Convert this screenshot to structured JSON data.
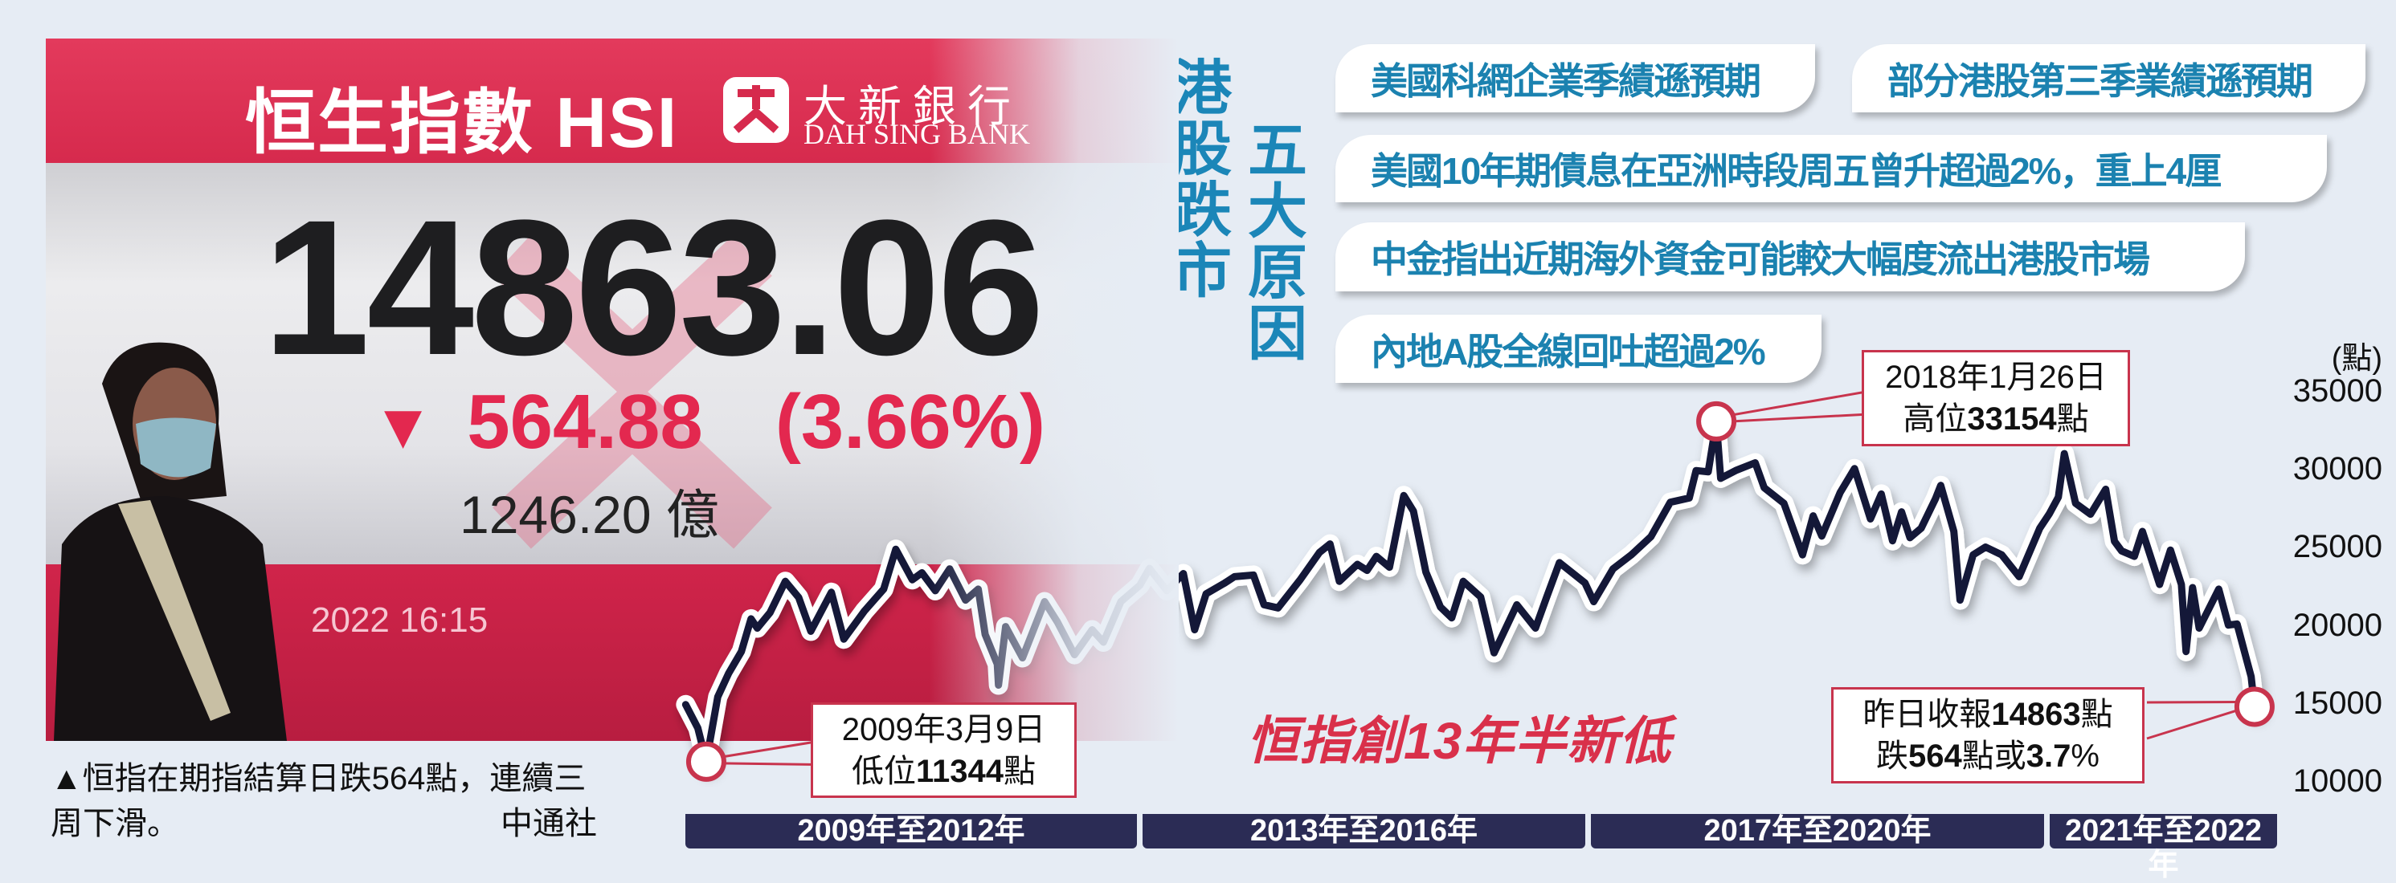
{
  "photo": {
    "board_title": "恒生指數 HSI",
    "bank_name_cn": "大新銀行",
    "bank_name_en": "DAH SING BANK",
    "index_value": "14863.06",
    "change_arrow": "▼",
    "change_points": "564.88",
    "change_percent": "(3.66%)",
    "turnover": "1246.20 億",
    "timestamp": "2022 16:15",
    "caption": "▲恒指在期指結算日跌564點，連續三周下滑。",
    "credit": "中通社"
  },
  "title": {
    "line1": "港股跌市",
    "line2": "五大原因"
  },
  "reasons": [
    "美國科網企業季績遜預期",
    "部分港股第三季業績遜預期",
    "美國10年期債息在亞洲時段周五曾升超過2%，重上4厘",
    "中金指出近期海外資金可能較大幅度流出港股市場",
    "內地A股全線回吐超過2%"
  ],
  "colors": {
    "accent_blue": "#1b82b0",
    "line": "#141838",
    "marker": "#c8344d",
    "band": "#2b2c55",
    "headline": "#d9304a"
  },
  "chart_data": {
    "type": "line",
    "title": "恒指創13年半新低",
    "ylabel": "(點)",
    "ylim": [
      10000,
      35000
    ],
    "yticks": [
      "35000",
      "30000",
      "25000",
      "20000",
      "15000",
      "10000"
    ],
    "x_bands": [
      "2009年至2012年",
      "2013年至2016年",
      "2017年至2020年",
      "2021年至2022年"
    ],
    "grid": false,
    "annotations": {
      "low": {
        "date_label": "2009年3月9日",
        "prefix": "低位",
        "value": "11344",
        "suffix": "點"
      },
      "high": {
        "date_label": "2018年1月26日",
        "prefix": "高位",
        "value": "33154",
        "suffix": "點"
      },
      "last": {
        "l1_prefix": "昨日收報",
        "l1_value": "14863",
        "l1_suffix": "點",
        "l2_prefix": "跌",
        "l2_value": "564",
        "l2_mid": "點或",
        "l2_pct": "3.7",
        "l2_suffix": "%"
      }
    },
    "series": [
      {
        "x": [
          "2009-01-02",
          "2009-02-10",
          "2009-03-09",
          "2009-04-15",
          "2009-05-20",
          "2009-06-30",
          "2009-07-31",
          "2009-08-20",
          "2009-09-30",
          "2009-11-18",
          "2009-12-31",
          "2010-02-08",
          "2010-04-15",
          "2010-05-25",
          "2010-07-30",
          "2010-09-30",
          "2010-11-08",
          "2010-12-31",
          "2011-01-31",
          "2011-03-15",
          "2011-04-30",
          "2011-06-20",
          "2011-07-31",
          "2011-08-22",
          "2011-09-30",
          "2011-10-04",
          "2011-10-27",
          "2011-12-20",
          "2012-02-29",
          "2012-04-10",
          "2012-06-04",
          "2012-07-31",
          "2012-09-05",
          "2012-10-31",
          "2012-12-31",
          "2013-01-31",
          "2013-03-28",
          "2013-05-20",
          "2013-06-25",
          "2013-08-01",
          "2013-09-30",
          "2013-10-31",
          "2013-12-31",
          "2014-02-03",
          "2014-03-20",
          "2014-05-30",
          "2014-07-31",
          "2014-09-03",
          "2014-10-03",
          "2014-11-30",
          "2014-12-31",
          "2015-01-30",
          "2015-03-13",
          "2015-04-28",
          "2015-05-29",
          "2015-07-08",
          "2015-08-24",
          "2015-09-29",
          "2015-11-05",
          "2015-12-31",
          "2016-02-12",
          "2016-04-25",
          "2016-06-24",
          "2016-07-30",
          "2016-09-09",
          "2016-11-30",
          "2016-12-28",
          "2017-02-28",
          "2017-04-28",
          "2017-06-30",
          "2017-08-31",
          "2017-10-31",
          "2017-11-22",
          "2017-12-31",
          "2018-01-26",
          "2018-02-09",
          "2018-03-29",
          "2018-05-31",
          "2018-06-29",
          "2018-08-31",
          "2018-10-30",
          "2018-12-03",
          "2018-12-31",
          "2019-02-28",
          "2019-04-15",
          "2019-06-05",
          "2019-07-10",
          "2019-08-15",
          "2019-09-13",
          "2019-10-10",
          "2019-11-15",
          "2019-12-31",
          "2020-01-17",
          "2020-02-28",
          "2020-03-19",
          "2020-04-30",
          "2020-06-09",
          "2020-07-31",
          "2020-09-25",
          "2020-11-30",
          "2020-12-31",
          "2021-01-29",
          "2021-02-17",
          "2021-03-25",
          "2021-05-12",
          "2021-06-30",
          "2021-07-28",
          "2021-08-20",
          "2021-09-30",
          "2021-10-26",
          "2021-12-20",
          "2021-12-31",
          "2022-01-24",
          "2022-02-28",
          "2022-03-15",
          "2022-04-05",
          "2022-04-26",
          "2022-06-28",
          "2022-07-29",
          "2022-08-26",
          "2022-09-26",
          "2022-10-10",
          "2022-10-21"
        ],
        "y": [
          15000,
          13500,
          11344,
          15500,
          17000,
          18400,
          20500,
          19900,
          20900,
          22900,
          21870,
          19700,
          22200,
          19200,
          21000,
          22400,
          24960,
          23000,
          23450,
          22300,
          23700,
          21700,
          22400,
          19500,
          17600,
          16250,
          20000,
          18000,
          21600,
          20300,
          18200,
          19800,
          19000,
          21600,
          22650,
          23730,
          22300,
          23400,
          19800,
          22100,
          22800,
          23200,
          23300,
          21400,
          21200,
          23000,
          24750,
          25300,
          22900,
          23990,
          23600,
          24500,
          23800,
          28400,
          27400,
          23500,
          21250,
          20560,
          22900,
          21900,
          18320,
          21400,
          19900,
          21900,
          24100,
          22800,
          21600,
          23700,
          24600,
          25760,
          27970,
          28240,
          30000,
          29920,
          33154,
          29500,
          30000,
          30500,
          28900,
          27900,
          24600,
          27100,
          25800,
          28600,
          30130,
          26900,
          28500,
          25500,
          27350,
          25700,
          26300,
          28190,
          29050,
          26100,
          21700,
          24600,
          25100,
          24600,
          23200,
          26300,
          27230,
          28300,
          31085,
          27900,
          27200,
          28800,
          25470,
          24850,
          24500,
          26100,
          22700,
          23400,
          24900,
          22700,
          18400,
          22500,
          19900,
          22400,
          20100,
          20170,
          17850,
          16800,
          14863
        ]
      }
    ]
  }
}
